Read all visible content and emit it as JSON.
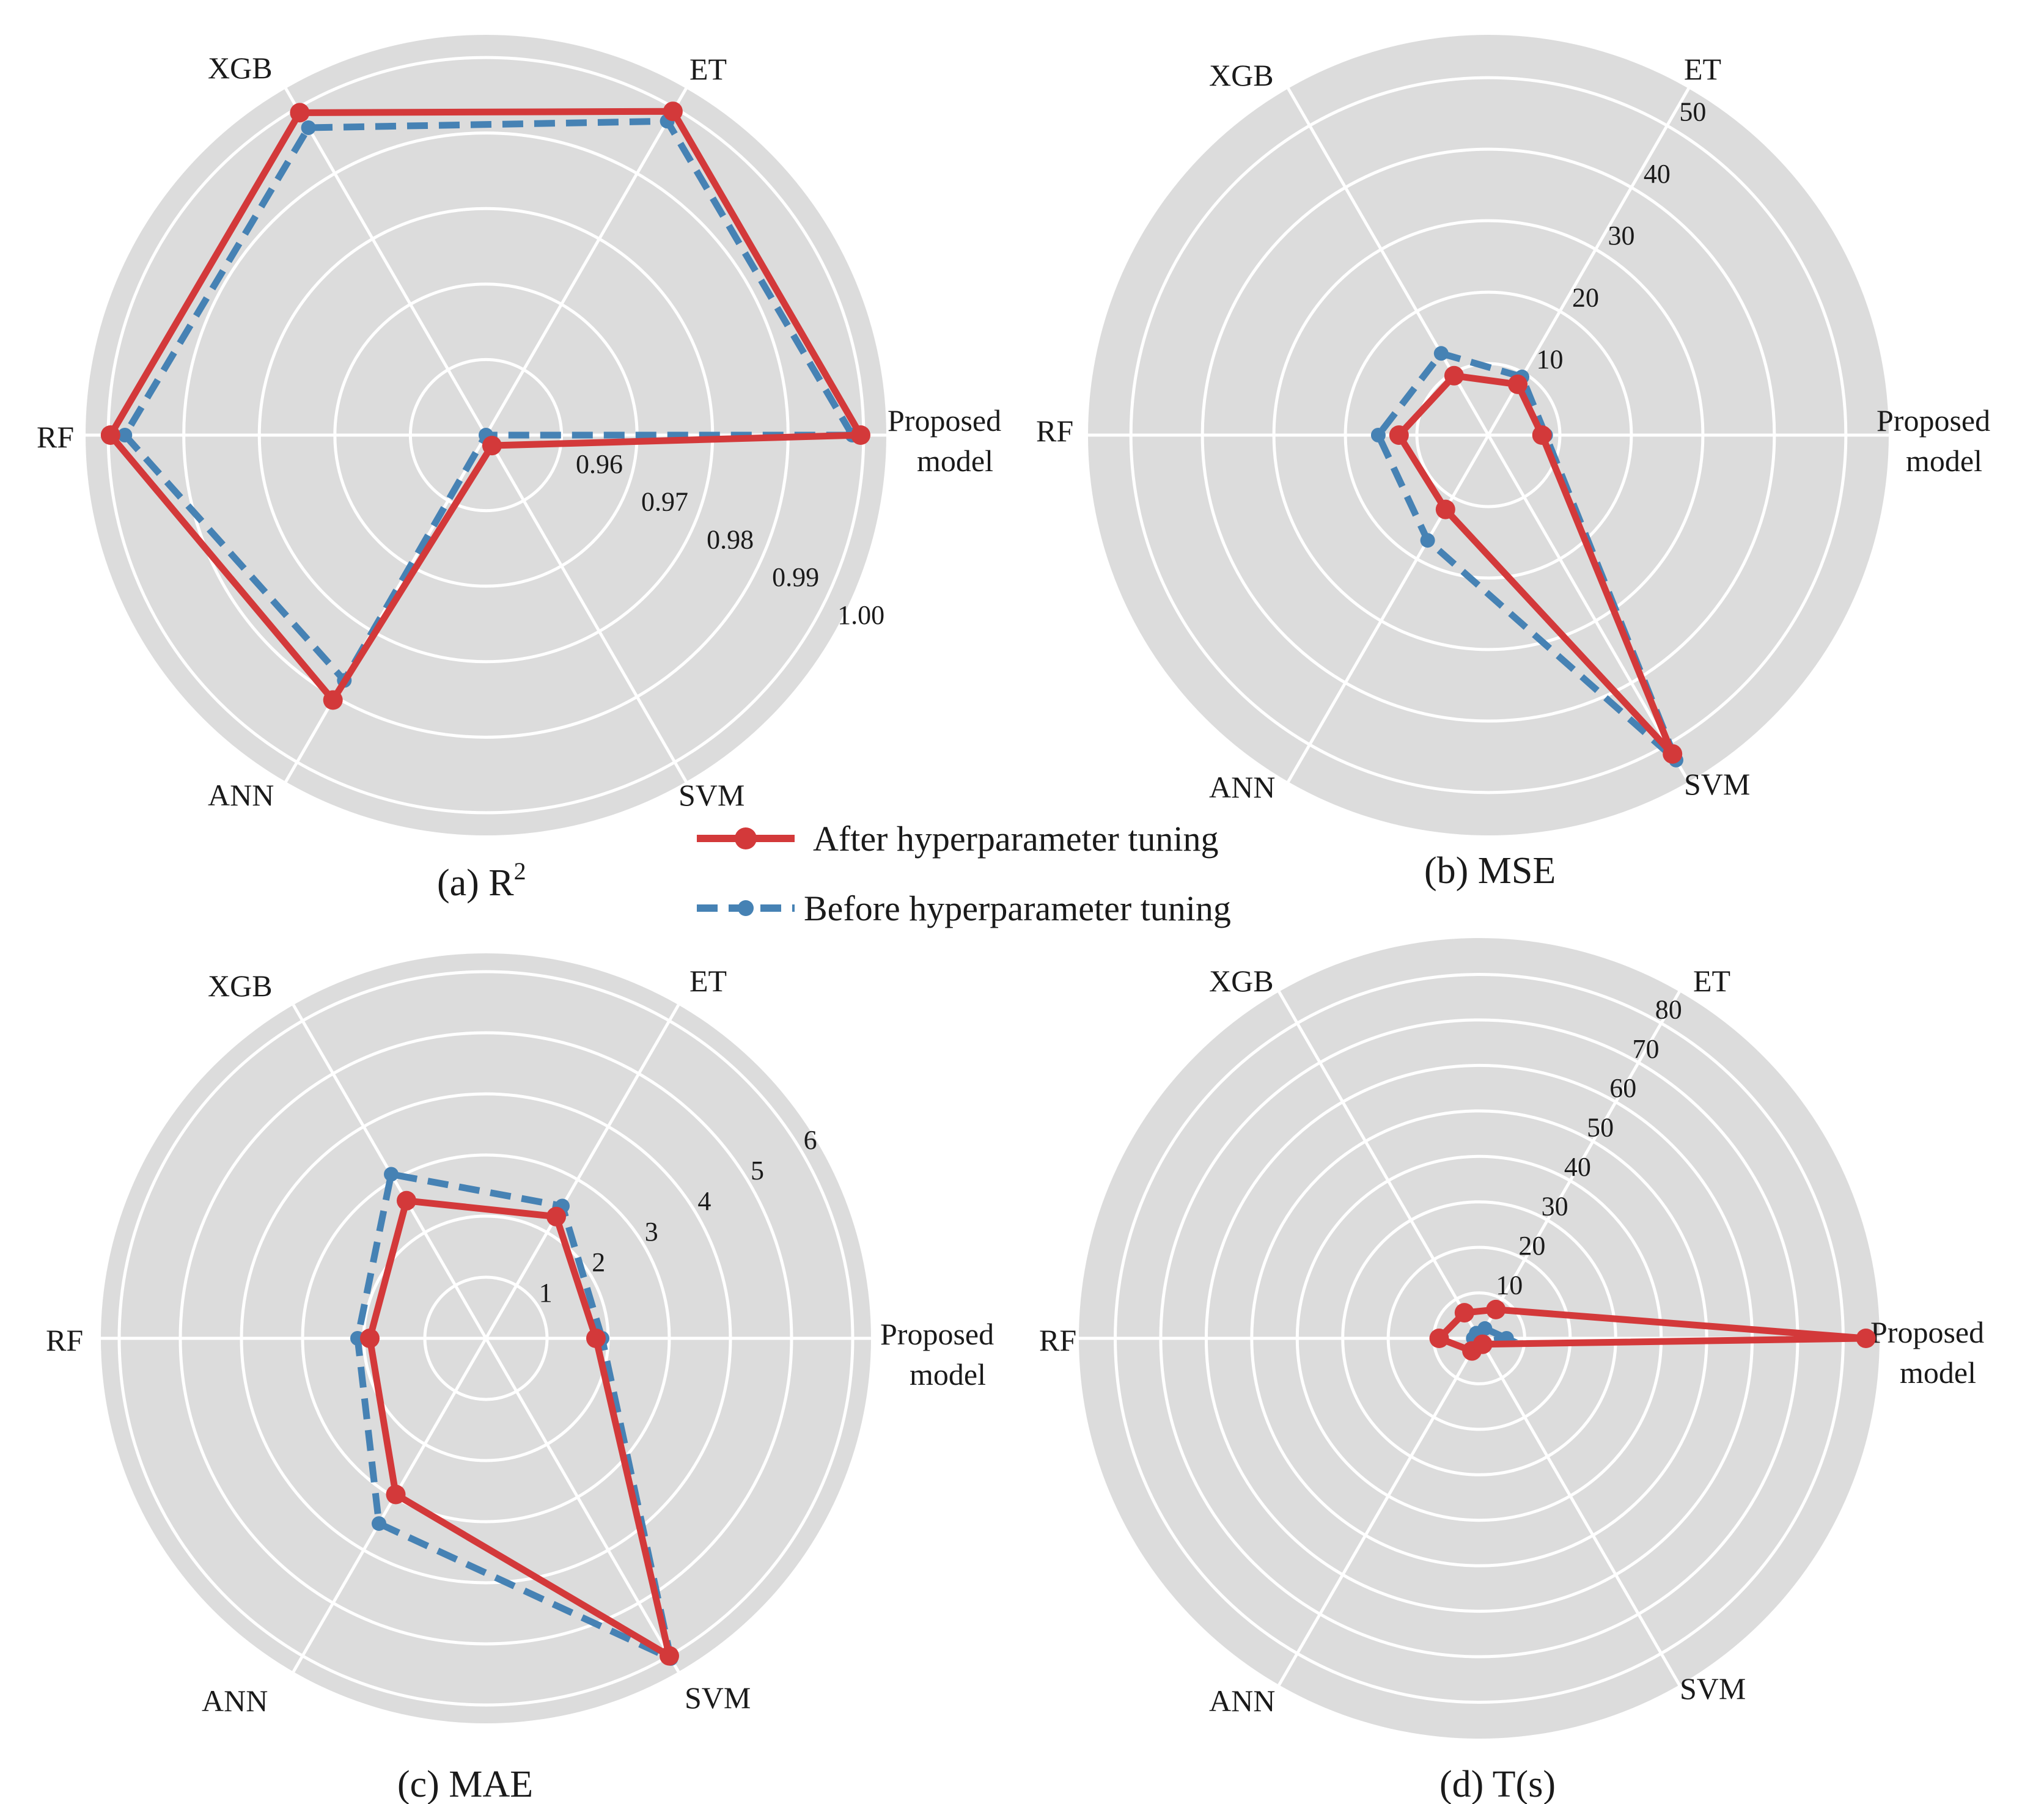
{
  "colors": {
    "after": "#d3393a",
    "before": "#4682b4",
    "panel_bg": "#dcdcdc",
    "grid": "#ffffff"
  },
  "legend": {
    "after_label": "After hyperparameter tuning",
    "before_label": "Before hyperparameter tuning"
  },
  "chart_data": [
    {
      "type": "radar",
      "panel": "a",
      "caption_prefix": "(a)",
      "title": "R",
      "title_sup": "2",
      "categories": [
        "Proposed model",
        "ET",
        "XGB",
        "RF",
        "ANN",
        "SVM"
      ],
      "rlim": [
        0.95,
        1.003
      ],
      "ticks": [
        0.96,
        0.97,
        0.98,
        0.99,
        1.0
      ],
      "tick_labels": [
        "0.96",
        "0.97",
        "0.98",
        "0.99",
        "1.00"
      ],
      "series": [
        {
          "name": "After hyperparameter tuning",
          "values": [
            0.9996,
            0.9995,
            0.9993,
            0.9997,
            0.9905,
            0.9516
          ]
        },
        {
          "name": "Before hyperparameter tuning",
          "values": [
            0.9985,
            0.998,
            0.997,
            0.9978,
            0.9875,
            0.95
          ]
        }
      ]
    },
    {
      "type": "radar",
      "panel": "b",
      "caption_prefix": "(b)",
      "title": "MSE",
      "categories": [
        "Proposed model",
        "ET",
        "XGB",
        "RF",
        "ANN",
        "SVM"
      ],
      "rlim": [
        0,
        56
      ],
      "ticks": [
        10,
        20,
        30,
        40,
        50
      ],
      "tick_labels": [
        "10",
        "20",
        "30",
        "40",
        "50"
      ],
      "series": [
        {
          "name": "After hyperparameter tuning",
          "values": [
            7.5,
            8.2,
            9.6,
            12.5,
            12.0,
            51.5
          ]
        },
        {
          "name": "Before hyperparameter tuning",
          "values": [
            8.0,
            9.4,
            13.2,
            15.4,
            17.0,
            52.5
          ]
        }
      ]
    },
    {
      "type": "radar",
      "panel": "c",
      "caption_prefix": "(c)",
      "title": "MAE",
      "categories": [
        "Proposed model",
        "ET",
        "XGB",
        "RF",
        "ANN",
        "SVM"
      ],
      "rlim": [
        0,
        6.3
      ],
      "ticks": [
        1,
        2,
        3,
        4,
        5,
        6
      ],
      "tick_labels": [
        "1",
        "2",
        "3",
        "4",
        "5",
        "6"
      ],
      "series": [
        {
          "name": "After hyperparameter tuning",
          "values": [
            1.8,
            2.3,
            2.6,
            1.9,
            2.95,
            6.0
          ]
        },
        {
          "name": "Before hyperparameter tuning",
          "values": [
            1.9,
            2.5,
            3.1,
            2.1,
            3.5,
            6.05
          ]
        }
      ]
    },
    {
      "type": "radar",
      "panel": "d",
      "caption_prefix": "(d)",
      "title": "T(s)",
      "categories": [
        "Proposed model",
        "ET",
        "XGB",
        "RF",
        "ANN",
        "SVM"
      ],
      "rlim": [
        0,
        88
      ],
      "ticks": [
        10,
        20,
        30,
        40,
        50,
        60,
        70,
        80
      ],
      "tick_labels": [
        "10",
        "20",
        "30",
        "40",
        "50",
        "60",
        "70",
        "80"
      ],
      "series": [
        {
          "name": "After hyperparameter tuning",
          "values": [
            85,
            7.3,
            6.5,
            8.8,
            3.2,
            1.5
          ]
        },
        {
          "name": "Before hyperparameter tuning",
          "values": [
            6.0,
            2.5,
            1.3,
            1.3,
            1.3,
            1.0
          ]
        }
      ]
    }
  ]
}
